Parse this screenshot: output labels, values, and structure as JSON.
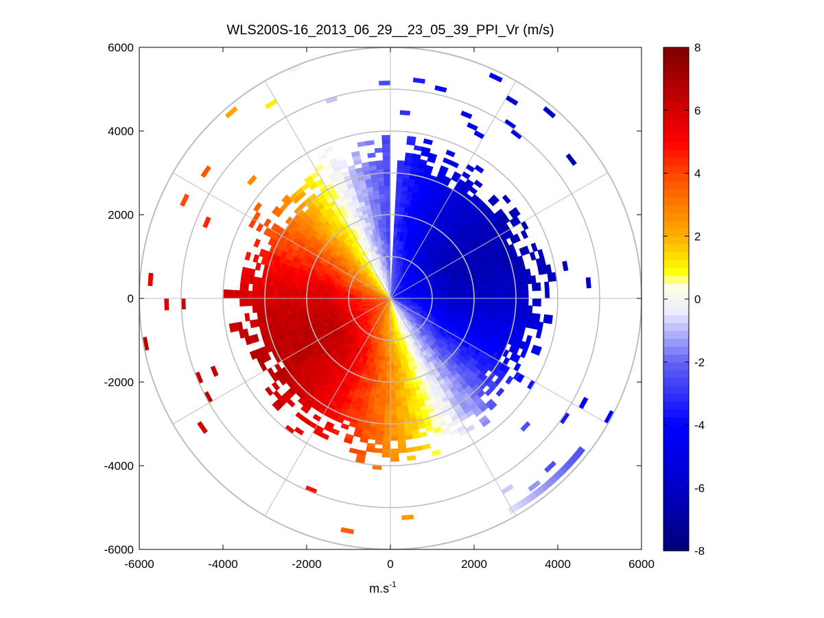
{
  "chart_data": {
    "type": "heatmap",
    "subtype": "polar-ppi",
    "title": "WLS200S-16_2013_06_29__23_05_39_PPI_Vr (m/s)",
    "xlabel_base": "m.s",
    "xlabel_exp": "-1",
    "ylabel": "",
    "xlim": [
      -6000,
      6000
    ],
    "ylim": [
      -6000,
      6000
    ],
    "x_ticks": [
      -6000,
      -4000,
      -2000,
      0,
      2000,
      4000,
      6000
    ],
    "y_ticks": [
      6000,
      4000,
      2000,
      0,
      -2000,
      -4000,
      -6000
    ],
    "x_tick_labels": [
      "-6000",
      "-4000",
      "-2000",
      "0",
      "2000",
      "4000",
      "6000"
    ],
    "y_tick_labels": [
      "6000",
      "4000",
      "2000",
      "0",
      "-2000",
      "-4000",
      "-6000"
    ],
    "range_rings": [
      1000,
      2000,
      3000,
      4000,
      5000,
      6000
    ],
    "spoke_angles_deg": [
      0,
      30,
      60,
      90,
      120,
      150,
      180,
      210,
      240,
      270,
      300,
      330
    ],
    "grid": true,
    "colorbar": {
      "min": -8,
      "max": 8,
      "ticks": [
        8,
        6,
        4,
        2,
        0,
        -2,
        -4,
        -6,
        -8
      ],
      "tick_labels": [
        "8",
        "6",
        "4",
        "2",
        "0",
        "-2",
        "-4",
        "-6",
        "-8"
      ],
      "colormap": "blue-white-yellow-red"
    },
    "wind_direction_deg": 66,
    "max_abs_velocity": 6.5,
    "dense_range_max": 3600,
    "gap_azimuth_deg": [
      -1,
      1.5
    ]
  }
}
